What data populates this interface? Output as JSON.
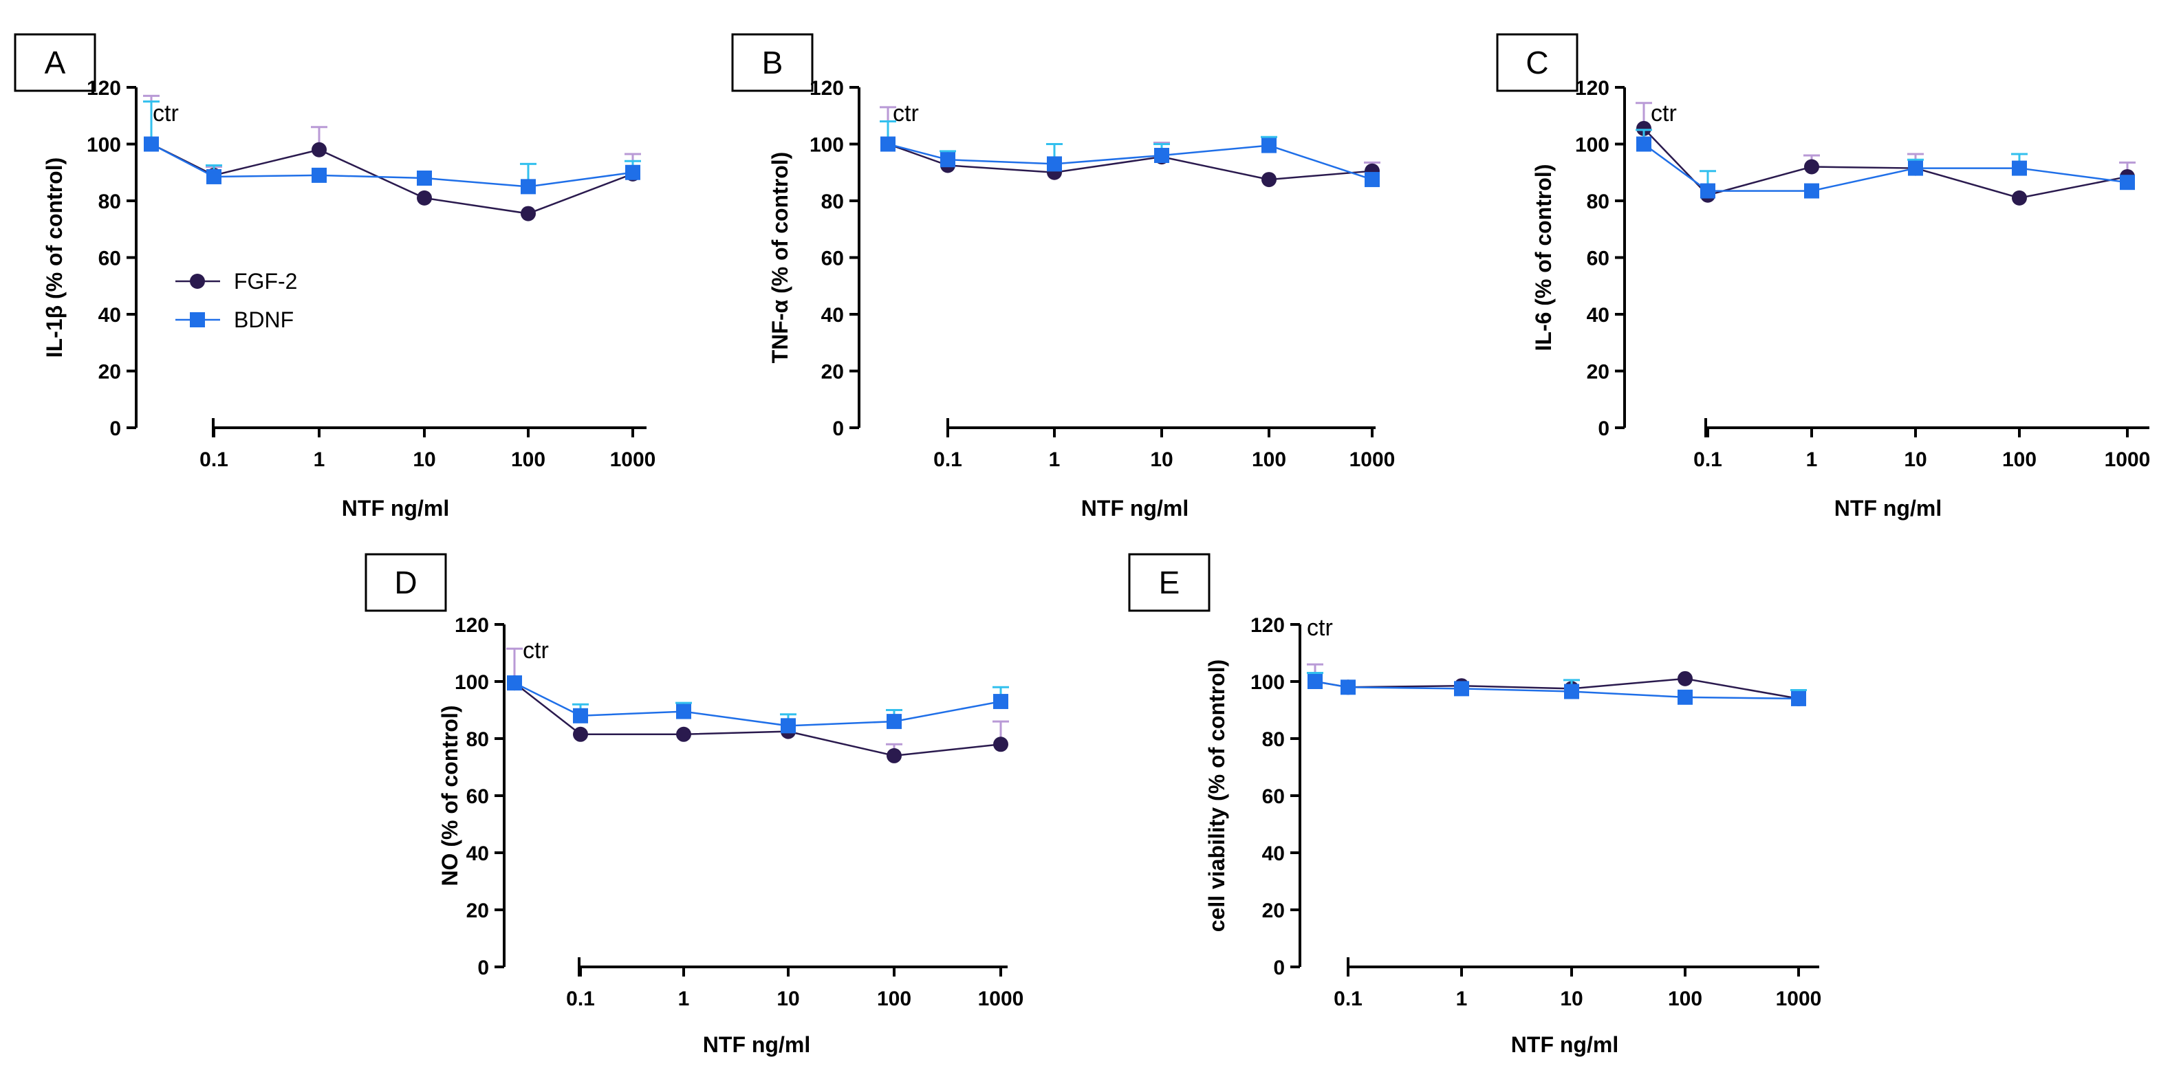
{
  "colors": {
    "fgf2": "#2a1a4e",
    "bdnf": "#1f6fe8",
    "fgf2_err": "#b99ad6",
    "bdnf_err": "#33c0ee"
  },
  "legend": {
    "fgf2": "FGF-2",
    "bdnf": "BDNF"
  },
  "chart_data": [
    {
      "type": "line",
      "panel": "A",
      "ylabel": "IL-1β (%  of control)",
      "xlabel": "NTF ng/ml",
      "ylim": [
        0,
        120
      ],
      "yticks": [
        "0",
        "20",
        "40",
        "60",
        "80",
        "100",
        "120"
      ],
      "control_label": "ctr",
      "categories": [
        "0.1",
        "1",
        "10",
        "100",
        "1000"
      ],
      "series": [
        {
          "name": "FGF-2",
          "control": 100,
          "control_err": 17,
          "values": [
            89,
            98,
            81,
            75.5,
            89.5
          ],
          "errors": [
            3,
            8,
            0,
            0,
            7
          ]
        },
        {
          "name": "BDNF",
          "control": 100,
          "control_err": 15,
          "values": [
            88.5,
            89,
            88,
            85,
            90
          ],
          "errors": [
            4,
            0,
            0,
            8,
            4
          ]
        }
      ]
    },
    {
      "type": "line",
      "panel": "B",
      "ylabel": "TNF-α (%  of control)",
      "xlabel": "NTF ng/ml",
      "ylim": [
        0,
        120
      ],
      "yticks": [
        "0",
        "20",
        "40",
        "60",
        "80",
        "100",
        "120"
      ],
      "control_label": "ctr",
      "categories": [
        "0.1",
        "1",
        "10",
        "100",
        "1000"
      ],
      "series": [
        {
          "name": "FGF-2",
          "control": 100,
          "control_err": 13,
          "values": [
            92.5,
            90,
            95.5,
            87.5,
            90.5
          ],
          "errors": [
            0,
            0,
            5,
            0,
            3
          ]
        },
        {
          "name": "BDNF",
          "control": 100,
          "control_err": 8,
          "values": [
            94.5,
            93,
            96,
            99.5,
            87.5
          ],
          "errors": [
            3,
            7,
            4,
            3,
            0
          ]
        }
      ]
    },
    {
      "type": "line",
      "panel": "C",
      "ylabel": "IL-6 (%  of control)",
      "xlabel": "NTF ng/ml",
      "ylim": [
        0,
        120
      ],
      "yticks": [
        "0",
        "20",
        "40",
        "60",
        "80",
        "100",
        "120"
      ],
      "control_label": "ctr",
      "categories": [
        "0.1",
        "1",
        "10",
        "100",
        "1000"
      ],
      "series": [
        {
          "name": "FGF-2",
          "control": 105.5,
          "control_err": 9,
          "values": [
            82,
            92,
            91.5,
            81,
            88.5
          ],
          "errors": [
            0,
            4,
            5,
            0,
            5
          ]
        },
        {
          "name": "BDNF",
          "control": 100,
          "control_err": 5,
          "values": [
            83.5,
            83.5,
            91.5,
            91.5,
            86.5
          ],
          "errors": [
            7,
            0,
            3,
            5,
            0
          ]
        }
      ]
    },
    {
      "type": "line",
      "panel": "D",
      "ylabel": "NO (%  of control)",
      "xlabel": "NTF ng/ml",
      "ylim": [
        0,
        120
      ],
      "yticks": [
        "0",
        "20",
        "40",
        "60",
        "80",
        "100",
        "120"
      ],
      "control_label": "ctr",
      "categories": [
        "0.1",
        "1",
        "10",
        "100",
        "1000"
      ],
      "series": [
        {
          "name": "FGF-2",
          "control": 99.5,
          "control_err": 12,
          "values": [
            81.5,
            81.5,
            82.5,
            74,
            78
          ],
          "errors": [
            0,
            0,
            0,
            4,
            8
          ]
        },
        {
          "name": "BDNF",
          "control": 99.5,
          "control_err": 0,
          "values": [
            88,
            89.5,
            84.5,
            86,
            93
          ],
          "errors": [
            4,
            3,
            4,
            4,
            5
          ]
        }
      ]
    },
    {
      "type": "line",
      "panel": "E",
      "ylabel": "cell viability (%  of control)",
      "xlabel": "NTF ng/ml",
      "ylim": [
        0,
        120
      ],
      "yticks": [
        "0",
        "20",
        "40",
        "60",
        "80",
        "100",
        "120"
      ],
      "control_label": "ctr",
      "categories": [
        "0.1",
        "1",
        "10",
        "100",
        "1000"
      ],
      "series": [
        {
          "name": "FGF-2",
          "control": 100,
          "control_err": 6,
          "values": [
            98,
            98.5,
            97.5,
            101,
            94
          ],
          "errors": [
            0,
            0,
            0,
            0,
            0
          ]
        },
        {
          "name": "BDNF",
          "control": 100,
          "control_err": 3,
          "values": [
            98,
            97.5,
            96.5,
            94.5,
            94
          ],
          "errors": [
            0,
            0,
            4,
            0,
            3
          ]
        }
      ]
    }
  ]
}
